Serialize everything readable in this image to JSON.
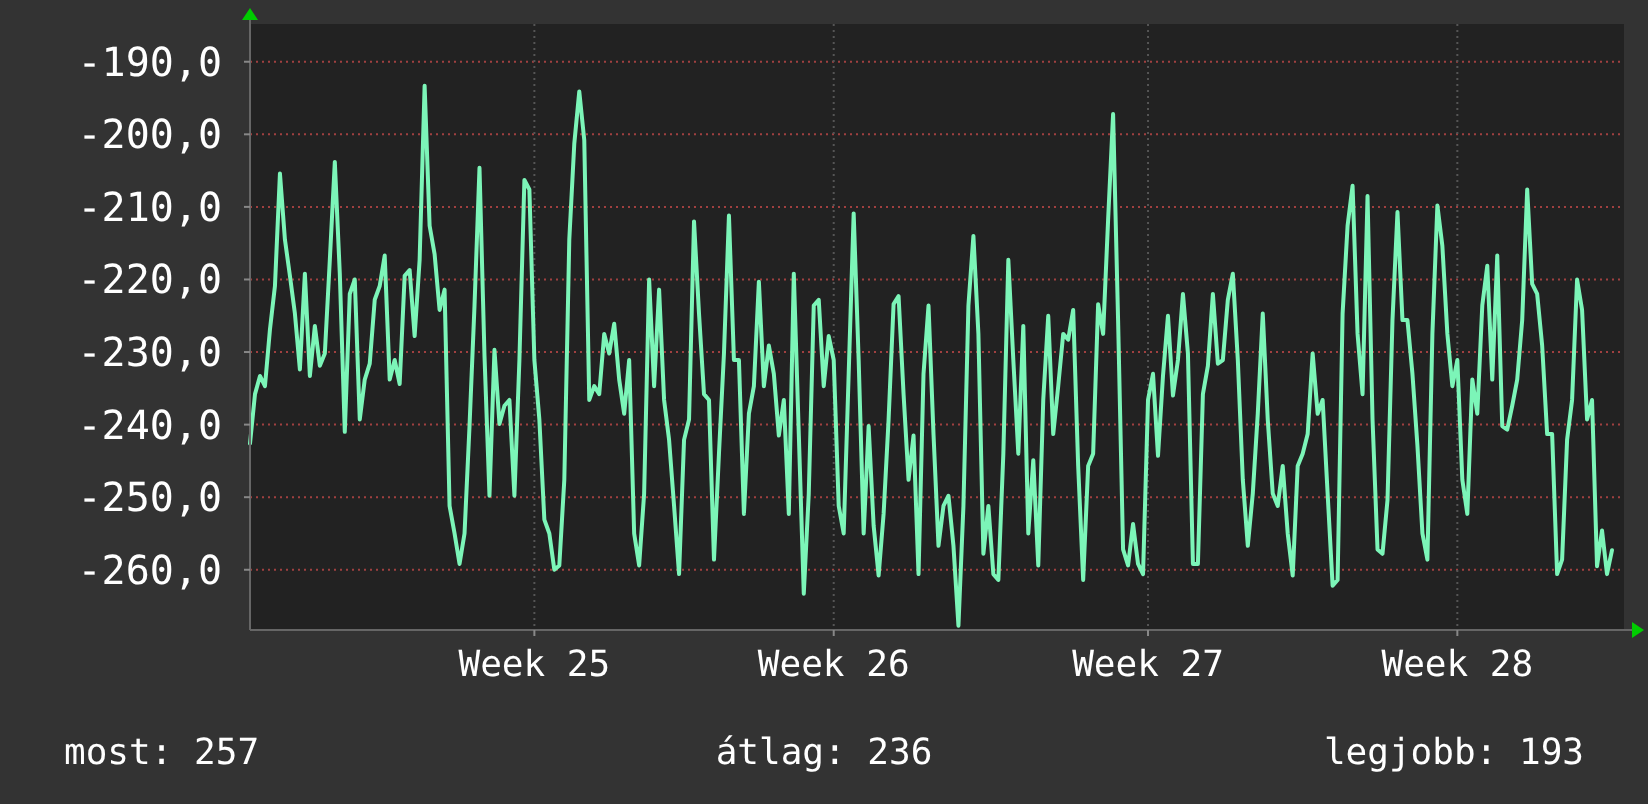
{
  "chart_data": {
    "type": "line",
    "categories": [
      null,
      null,
      null,
      null,
      null,
      null,
      null,
      null,
      null,
      null,
      null,
      null,
      null,
      null,
      null,
      null,
      null,
      null,
      null,
      null,
      null,
      null,
      null,
      null,
      null,
      null,
      null,
      null,
      null,
      null,
      null,
      null,
      null,
      null,
      null,
      null,
      null,
      null,
      null,
      null,
      null,
      null,
      null,
      null,
      null,
      null,
      null,
      null,
      null,
      null,
      null,
      null,
      null,
      null,
      null,
      null,
      null,
      "Week 25",
      null,
      null,
      null,
      null,
      null,
      null,
      null,
      null,
      null,
      null,
      null,
      null,
      null,
      null,
      null,
      null,
      null,
      null,
      null,
      null,
      null,
      null,
      null,
      null,
      null,
      null,
      null,
      null,
      null,
      null,
      null,
      null,
      null,
      null,
      null,
      null,
      null,
      null,
      null,
      null,
      null,
      null,
      null,
      null,
      null,
      null,
      null,
      null,
      null,
      null,
      null,
      null,
      null,
      null,
      null,
      null,
      null,
      null,
      null,
      "Week 26",
      null,
      null,
      null,
      null,
      null,
      null,
      null,
      null,
      null,
      null,
      null,
      null,
      null,
      null,
      null,
      null,
      null,
      null,
      null,
      null,
      null,
      null,
      null,
      null,
      null,
      null,
      null,
      null,
      null,
      null,
      null,
      null,
      null,
      null,
      null,
      null,
      null,
      null,
      null,
      null,
      null,
      null,
      null,
      null,
      null,
      null,
      null,
      null,
      null,
      null,
      null,
      null,
      null,
      null,
      null,
      null,
      null,
      null,
      null,
      null,
      null,
      null,
      "Week 27",
      null,
      null,
      null,
      null,
      null,
      null,
      null,
      null,
      null,
      null,
      null,
      null,
      null,
      null,
      null,
      null,
      null,
      null,
      null,
      null,
      null,
      null,
      null,
      null,
      null,
      null,
      null,
      null,
      null,
      null,
      null,
      null,
      null,
      null,
      null,
      null,
      null,
      null,
      null,
      null,
      null,
      null,
      null,
      null,
      null,
      null,
      null,
      null,
      null,
      null,
      null,
      null,
      null,
      null,
      null,
      null,
      null,
      null,
      null,
      null,
      null,
      "Week 28",
      null,
      null,
      null,
      null,
      null,
      null,
      null,
      null,
      null,
      null,
      null,
      null,
      null,
      null,
      null,
      null,
      null,
      null,
      null,
      null,
      null,
      null,
      null,
      null,
      null,
      null,
      null,
      null,
      null,
      null,
      null
    ],
    "series": [
      {
        "color": "#7cf5b8",
        "values": [
          -242.6,
          -235.8,
          -233.3,
          -234.7,
          -226.9,
          -220.9,
          -205.4,
          -214.5,
          -219.5,
          -224.7,
          -232.4,
          -219.2,
          -233.3,
          -226.4,
          -231.9,
          -230.2,
          -217.3,
          -203.8,
          -219.2,
          -241.0,
          -222.0,
          -220.0,
          -239.3,
          -233.8,
          -231.6,
          -222.8,
          -220.9,
          -216.7,
          -233.8,
          -231.1,
          -234.4,
          -219.5,
          -218.7,
          -227.8,
          -217.3,
          -193.3,
          -212.6,
          -216.5,
          -224.2,
          -221.4,
          -251.2,
          -255.0,
          -259.2,
          -255.0,
          -240.2,
          -223.6,
          -204.6,
          -230.5,
          -249.8,
          -229.7,
          -239.9,
          -237.4,
          -236.6,
          -249.8,
          -231.1,
          -206.3,
          -207.6,
          -231.1,
          -239.3,
          -253.1,
          -255.0,
          -260.0,
          -259.4,
          -247.6,
          -214.5,
          -201.3,
          -194.1,
          -200.8,
          -236.6,
          -234.7,
          -235.8,
          -227.5,
          -230.2,
          -226.1,
          -233.8,
          -238.5,
          -231.1,
          -255.0,
          -259.4,
          -249.5,
          -220.0,
          -234.7,
          -221.4,
          -236.6,
          -242.1,
          -251.2,
          -260.6,
          -242.1,
          -239.3,
          -212.0,
          -224.7,
          -235.8,
          -236.6,
          -258.6,
          -244.0,
          -230.2,
          -211.2,
          -231.1,
          -231.1,
          -252.3,
          -238.5,
          -234.7,
          -220.3,
          -234.7,
          -229.1,
          -233.0,
          -241.5,
          -236.6,
          -252.3,
          -219.2,
          -241.3,
          -263.3,
          -249.5,
          -223.6,
          -222.8,
          -234.7,
          -227.8,
          -231.1,
          -251.2,
          -255.0,
          -233.0,
          -210.9,
          -231.1,
          -255.0,
          -240.2,
          -253.9,
          -260.8,
          -252.3,
          -239.3,
          -223.4,
          -222.3,
          -235.8,
          -247.6,
          -241.5,
          -260.6,
          -233.0,
          -223.6,
          -241.3,
          -256.7,
          -251.2,
          -249.8,
          -256.7,
          -267.7,
          -251.2,
          -223.6,
          -214.0,
          -227.5,
          -257.8,
          -251.2,
          -260.6,
          -261.4,
          -244.0,
          -217.3,
          -231.1,
          -244.0,
          -226.4,
          -255.0,
          -244.9,
          -259.4,
          -236.6,
          -225.0,
          -241.3,
          -234.7,
          -227.5,
          -228.3,
          -224.2,
          -245.7,
          -261.4,
          -245.7,
          -244.0,
          -223.4,
          -227.5,
          -211.8,
          -197.2,
          -225.6,
          -257.2,
          -259.4,
          -253.7,
          -259.2,
          -260.6,
          -236.6,
          -233.0,
          -244.3,
          -233.3,
          -225.0,
          -236.0,
          -231.1,
          -222.0,
          -230.2,
          -259.2,
          -259.2,
          -235.8,
          -231.9,
          -222.0,
          -231.6,
          -231.1,
          -222.8,
          -219.2,
          -231.1,
          -247.6,
          -256.7,
          -249.5,
          -238.5,
          -224.7,
          -239.3,
          -249.5,
          -251.2,
          -245.7,
          -255.0,
          -260.8,
          -245.7,
          -244.0,
          -241.3,
          -230.2,
          -238.5,
          -236.6,
          -249.5,
          -262.2,
          -261.4,
          -224.7,
          -212.6,
          -207.1,
          -227.5,
          -235.8,
          -208.5,
          -239.3,
          -257.2,
          -257.8,
          -250.4,
          -225.6,
          -210.7,
          -225.6,
          -225.6,
          -233.0,
          -242.9,
          -255.0,
          -258.6,
          -227.5,
          -209.8,
          -215.4,
          -227.5,
          -234.7,
          -231.1,
          -247.6,
          -252.3,
          -233.8,
          -238.5,
          -223.6,
          -218.1,
          -233.8,
          -216.7,
          -240.2,
          -240.7,
          -237.4,
          -233.8,
          -225.6,
          -207.6,
          -220.6,
          -222.0,
          -229.1,
          -241.3,
          -241.3,
          -260.6,
          -258.6,
          -242.1,
          -236.6,
          -220.0,
          -224.2,
          -239.3,
          -236.6,
          -259.5,
          -254.6,
          -260.6,
          -257.3
        ]
      }
    ],
    "ylim": [
      -268.3,
      -184.8
    ],
    "yticks": [
      {
        "value": -260,
        "label": "-260,0"
      },
      {
        "value": -250,
        "label": "-250,0"
      },
      {
        "value": -240,
        "label": "-240,0"
      },
      {
        "value": -230,
        "label": "-230,0"
      },
      {
        "value": -220,
        "label": "-220,0"
      },
      {
        "value": -210,
        "label": "-210,0"
      },
      {
        "value": -200,
        "label": "-200,0"
      },
      {
        "value": -190,
        "label": "-190,0"
      }
    ],
    "grid": true,
    "line_style": "solid",
    "annotations": [
      "most: 257",
      "átlag: 236",
      "legjobb: 193"
    ]
  }
}
